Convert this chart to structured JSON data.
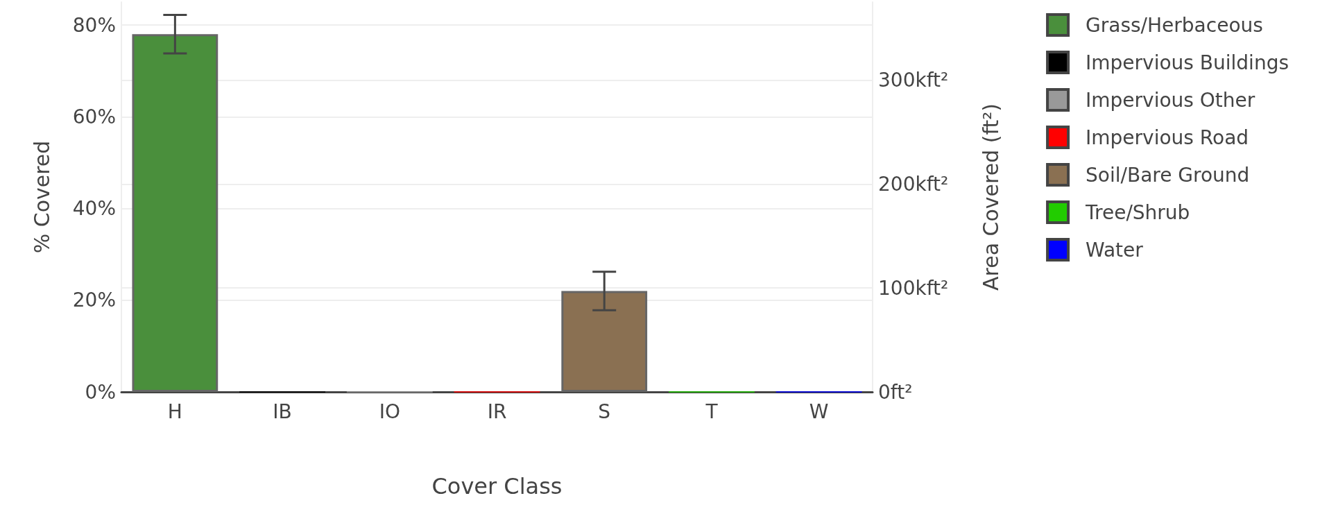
{
  "chart_data": {
    "type": "bar",
    "stacked": true,
    "xlabel": "Cover Class",
    "ylabel": "% Covered",
    "y2label": "Area Covered (ft²)",
    "categories": [
      "H",
      "IB",
      "IO",
      "IR",
      "S",
      "T",
      "W"
    ],
    "series": [
      {
        "name": "Grass/Herbaceous",
        "color": "#4a8f3c",
        "values": [
          78,
          null,
          null,
          null,
          null,
          null,
          null
        ],
        "errors": [
          4.2,
          null,
          null,
          null,
          null,
          null,
          null
        ]
      },
      {
        "name": "Impervious Buildings",
        "color": "#000000",
        "values": [
          null,
          0,
          null,
          null,
          null,
          null,
          null
        ]
      },
      {
        "name": "Impervious Other",
        "color": "#999999",
        "values": [
          null,
          null,
          0,
          null,
          null,
          null,
          null
        ]
      },
      {
        "name": "Impervious Road",
        "color": "#ff0000",
        "values": [
          null,
          null,
          null,
          0,
          null,
          null,
          null
        ]
      },
      {
        "name": "Soil/Bare Ground",
        "color": "#8a7052",
        "values": [
          null,
          null,
          null,
          null,
          22,
          null,
          null
        ],
        "errors": [
          null,
          null,
          null,
          null,
          4.2,
          null,
          null
        ]
      },
      {
        "name": "Tree/Shrub",
        "color": "#22cc00",
        "values": [
          null,
          null,
          null,
          null,
          null,
          0,
          null
        ]
      },
      {
        "name": "Water",
        "color": "#0000ff",
        "values": [
          null,
          null,
          null,
          null,
          null,
          null,
          0
        ]
      }
    ],
    "ylim": [
      0,
      85
    ],
    "yticks": [
      {
        "value": 0,
        "label": "0%"
      },
      {
        "value": 20,
        "label": "20%"
      },
      {
        "value": 40,
        "label": "40%"
      },
      {
        "value": 60,
        "label": "60%"
      },
      {
        "value": 80,
        "label": "80%"
      }
    ],
    "y2lim": [
      0,
      375
    ],
    "y2ticks": [
      {
        "value": 0,
        "label": "0ft²"
      },
      {
        "value": 100,
        "label": "100kft²"
      },
      {
        "value": 200,
        "label": "200kft²"
      },
      {
        "value": 300,
        "label": "300kft²"
      }
    ],
    "grid": "y",
    "legend": "right"
  }
}
